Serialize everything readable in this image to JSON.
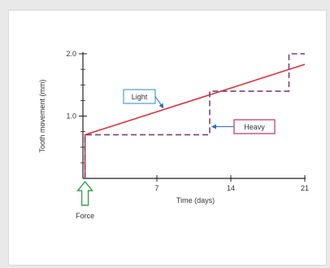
{
  "colors": {
    "light": "#d9323a",
    "heavy": "#7c3f7a",
    "light_box_border": "#4a9fd8",
    "heavy_box_border": "#c0306a",
    "arrow": "#2a6db5",
    "force_arrow": "#3aa14a",
    "axis": "#222222"
  },
  "chart_data": {
    "type": "line",
    "title": "",
    "xlabel": "Time (days)",
    "ylabel": "Tooth movement (mm)",
    "xlim": [
      0,
      21
    ],
    "ylim": [
      0,
      2.0
    ],
    "x_ticks": [
      7,
      14,
      21
    ],
    "y_ticks": [
      1.0,
      2.0
    ],
    "x_tick_labels": [
      "7",
      "14",
      "21"
    ],
    "y_tick_labels": [
      "1.0",
      "2.0"
    ],
    "y_minor_ticks": [
      0.25,
      0.5,
      0.75,
      1.25,
      1.5,
      1.75
    ],
    "grid": false,
    "series": [
      {
        "name": "Light",
        "style": "solid",
        "x": [
          0.2,
          0.2,
          21
        ],
        "y": [
          0,
          0.7,
          1.83
        ]
      },
      {
        "name": "Heavy",
        "style": "dashed",
        "x": [
          0.2,
          0.2,
          12,
          12,
          19.5,
          19.5,
          21
        ],
        "y": [
          0,
          0.7,
          0.7,
          1.4,
          1.4,
          2.0,
          2.0
        ]
      }
    ],
    "annotations": {
      "light_label": "Light",
      "heavy_label": "Heavy",
      "force_label": "Force"
    }
  }
}
